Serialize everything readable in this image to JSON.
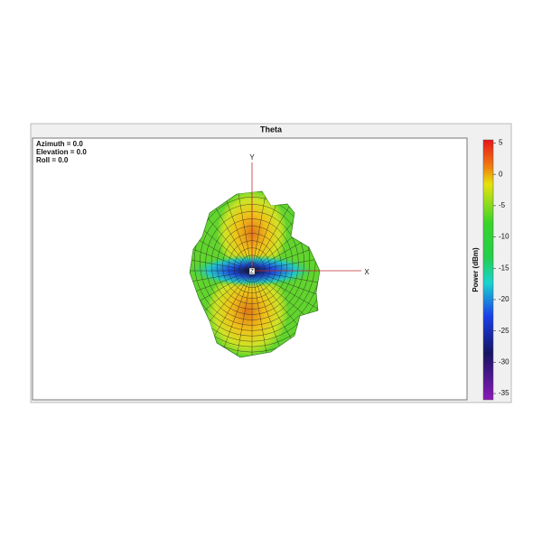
{
  "chart_data": {
    "type": "radiation-pattern-3d",
    "title": "Theta",
    "annotations": [
      "Azimuth = 0.0",
      "Elevation = 0.0",
      "Roll = 0.0"
    ],
    "axis_labels": {
      "x": "X",
      "y": "Y",
      "z": "Z"
    },
    "colorbar": {
      "label": "Power (dBm)",
      "lim": [
        -36,
        5.5
      ],
      "ticks": [
        5,
        0,
        -5,
        -10,
        -15,
        -20,
        -25,
        -30,
        -35
      ]
    }
  }
}
